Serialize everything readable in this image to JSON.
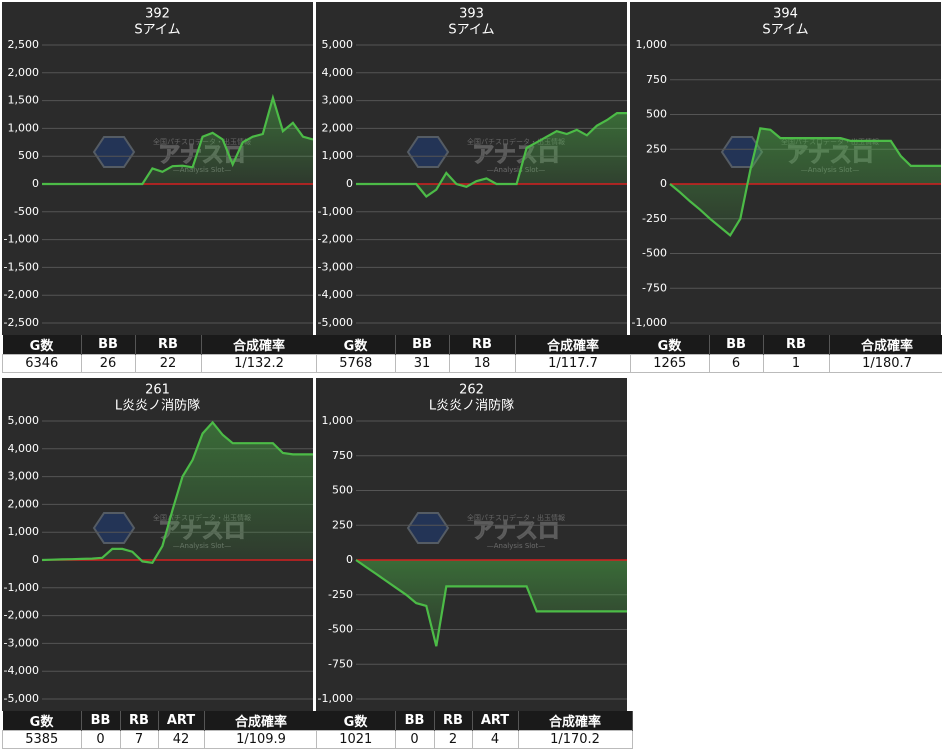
{
  "watermark": {
    "caption": "全国パチスロデータ・出玉情報",
    "logo": "アナスロ",
    "tagline": "—Analysis Slot—"
  },
  "chart_data": [
    {
      "type": "line",
      "title": "392",
      "subtitle": "Sアイム",
      "color": "#4cbb47",
      "zero_color": "#d42020",
      "values": [
        0,
        0,
        0,
        0,
        0,
        0,
        0,
        0,
        0,
        0,
        0,
        280,
        220,
        320,
        330,
        300,
        850,
        920,
        800,
        350,
        750,
        850,
        900,
        1550,
        950,
        1100,
        850,
        800
      ],
      "ylim": [
        -2500,
        2500
      ],
      "yticks": [
        {
          "value": 2500,
          "label": "2,500"
        },
        {
          "value": 2000,
          "label": "2,000"
        },
        {
          "value": 1500,
          "label": "1,500"
        },
        {
          "value": 1000,
          "label": "1,000"
        },
        500,
        0,
        -500,
        {
          "value": -1000,
          "label": "-1,000"
        },
        {
          "value": -1500,
          "label": "-1,500"
        },
        {
          "value": -2000,
          "label": "-2,000"
        },
        {
          "value": -2500,
          "label": "-2,500"
        }
      ],
      "grid": true,
      "table": {
        "header": [
          "G数",
          "BB",
          "RB",
          "合成確率"
        ],
        "row": [
          6346,
          26,
          22,
          "1/132.2"
        ]
      }
    },
    {
      "type": "line",
      "title": "393",
      "subtitle": "Sアイム",
      "color": "#4cbb47",
      "zero_color": "#d42020",
      "values": [
        0,
        0,
        0,
        0,
        0,
        0,
        0,
        -450,
        -200,
        400,
        0,
        -100,
        100,
        200,
        0,
        0,
        0,
        1300,
        1500,
        1700,
        1900,
        1800,
        1950,
        1750,
        2100,
        2300,
        2550,
        2550
      ],
      "ylim": [
        -5000,
        5000
      ],
      "yticks": [
        {
          "value": 5000,
          "label": "5,000"
        },
        {
          "value": 4000,
          "label": "4,000"
        },
        {
          "value": 3000,
          "label": "3,000"
        },
        {
          "value": 2000,
          "label": "2,000"
        },
        {
          "value": 1000,
          "label": "1,000"
        },
        0,
        {
          "value": -1000,
          "label": "-1,000"
        },
        {
          "value": -2000,
          "label": "-2,000"
        },
        {
          "value": -3000,
          "label": "-3,000"
        },
        {
          "value": -4000,
          "label": "-4,000"
        },
        {
          "value": -5000,
          "label": "-5,000"
        }
      ],
      "grid": true,
      "table": {
        "header": [
          "G数",
          "BB",
          "RB",
          "合成確率"
        ],
        "row": [
          5768,
          31,
          18,
          "1/117.7"
        ]
      }
    },
    {
      "type": "line",
      "title": "394",
      "subtitle": "Sアイム",
      "color": "#4cbb47",
      "zero_color": "#d42020",
      "values": [
        0,
        -60,
        -125,
        -185,
        -250,
        -310,
        -370,
        -250,
        100,
        400,
        390,
        330,
        330,
        330,
        330,
        330,
        330,
        330,
        310,
        310,
        310,
        310,
        310,
        200,
        130,
        130,
        130,
        130
      ],
      "ylim": [
        -1000,
        1000
      ],
      "yticks": [
        {
          "value": 1000,
          "label": "1,000"
        },
        750,
        500,
        250,
        0,
        -250,
        -500,
        -750,
        {
          "value": -1000,
          "label": "-1,000"
        }
      ],
      "grid": true,
      "table": {
        "header": [
          "G数",
          "BB",
          "RB",
          "合成確率"
        ],
        "row": [
          1265,
          6,
          1,
          "1/180.7"
        ]
      }
    },
    {
      "type": "line",
      "title": "261",
      "subtitle": "L炎炎ノ消防隊",
      "color": "#4cbb47",
      "zero_color": "#d42020",
      "values": [
        0,
        10,
        20,
        30,
        40,
        50,
        80,
        400,
        400,
        300,
        -50,
        -100,
        500,
        1800,
        3000,
        3600,
        4550,
        4950,
        4500,
        4200,
        4200,
        4200,
        4200,
        4200,
        3850,
        3800,
        3800,
        3800
      ],
      "ylim": [
        -5000,
        5000
      ],
      "yticks": [
        {
          "value": 5000,
          "label": "5,000"
        },
        {
          "value": 4000,
          "label": "4,000"
        },
        {
          "value": 3000,
          "label": "3,000"
        },
        {
          "value": 2000,
          "label": "2,000"
        },
        {
          "value": 1000,
          "label": "1,000"
        },
        0,
        {
          "value": -1000,
          "label": "-1,000"
        },
        {
          "value": -2000,
          "label": "-2,000"
        },
        {
          "value": -3000,
          "label": "-3,000"
        },
        {
          "value": -4000,
          "label": "-4,000"
        },
        {
          "value": -5000,
          "label": "-5,000"
        }
      ],
      "grid": true,
      "table": {
        "header": [
          "G数",
          "BB",
          "RB",
          "ART",
          "合成確率"
        ],
        "row": [
          5385,
          0,
          7,
          42,
          "1/109.9"
        ]
      }
    },
    {
      "type": "line",
      "title": "262",
      "subtitle": "L炎炎ノ消防隊",
      "color": "#4cbb47",
      "zero_color": "#d42020",
      "values": [
        0,
        -50,
        -100,
        -150,
        -200,
        -250,
        -310,
        -330,
        -620,
        -190,
        -190,
        -190,
        -190,
        -190,
        -190,
        -190,
        -190,
        -190,
        -370,
        -370,
        -370,
        -370,
        -370,
        -370,
        -370,
        -370,
        -370,
        -370
      ],
      "ylim": [
        -1000,
        1000
      ],
      "yticks": [
        {
          "value": 1000,
          "label": "1,000"
        },
        750,
        500,
        250,
        0,
        -250,
        -500,
        -750,
        {
          "value": -1000,
          "label": "-1,000"
        }
      ],
      "grid": true,
      "table": {
        "header": [
          "G数",
          "BB",
          "RB",
          "ART",
          "合成確率"
        ],
        "row": [
          1021,
          0,
          2,
          4,
          "1/170.2"
        ]
      }
    }
  ]
}
